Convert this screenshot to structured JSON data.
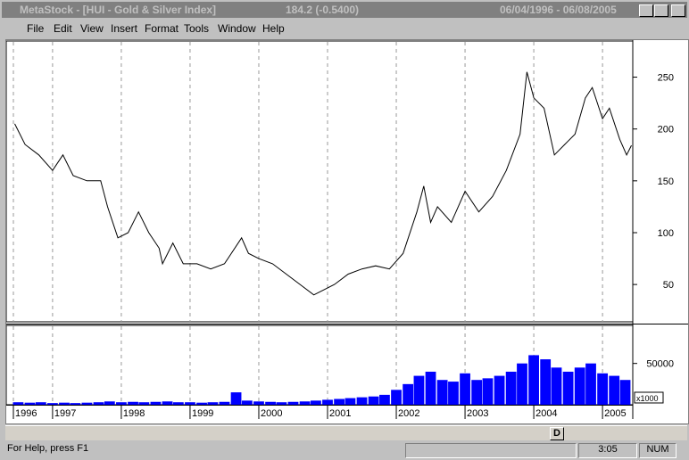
{
  "window": {
    "title": "MetaStock - [HUI - Gold & Silver Index]",
    "quote": "184.2 (-0.5400)",
    "range": "06/04/1996 - 06/08/2005"
  },
  "menu": [
    "File",
    "Edit",
    "View",
    "Insert",
    "Format",
    "Tools",
    "Window",
    "Help"
  ],
  "toolbar": {
    "button": "D"
  },
  "status": {
    "help": "For Help, press F1",
    "time": "3:05",
    "num": "NUM"
  },
  "chart_data": [
    {
      "type": "line",
      "color": "#000000",
      "x": [
        1996.45,
        1996.6,
        1996.8,
        1997.0,
        1997.15,
        1997.3,
        1997.5,
        1997.7,
        1997.8,
        1997.95,
        1998.1,
        1998.25,
        1998.4,
        1998.55,
        1998.6,
        1998.75,
        1998.9,
        1999.1,
        1999.3,
        1999.5,
        1999.75,
        1999.85,
        2000.0,
        2000.2,
        2000.4,
        2000.6,
        2000.8,
        2000.95,
        2001.1,
        2001.3,
        2001.5,
        2001.7,
        2001.9,
        2002.1,
        2002.3,
        2002.4,
        2002.5,
        2002.6,
        2002.8,
        2003.0,
        2003.2,
        2003.4,
        2003.6,
        2003.8,
        2003.9,
        2004.0,
        2004.15,
        2004.3,
        2004.45,
        2004.6,
        2004.75,
        2004.85,
        2005.0,
        2005.1,
        2005.25,
        2005.35,
        2005.42
      ],
      "values": [
        205,
        185,
        175,
        160,
        175,
        155,
        150,
        150,
        125,
        95,
        100,
        120,
        100,
        85,
        70,
        90,
        70,
        70,
        65,
        70,
        95,
        80,
        75,
        70,
        60,
        50,
        40,
        45,
        50,
        60,
        65,
        68,
        65,
        80,
        120,
        145,
        110,
        125,
        110,
        140,
        120,
        135,
        160,
        195,
        255,
        230,
        220,
        175,
        185,
        195,
        230,
        240,
        210,
        220,
        190,
        175,
        184.2
      ],
      "xlim": [
        1996.43,
        2005.44
      ],
      "ylim": [
        14,
        284
      ],
      "xticks": [
        {
          "value": 1996.43,
          "label": "1996"
        },
        1997,
        1998,
        1999,
        2000,
        2001,
        2002,
        2003,
        2004,
        2005
      ],
      "yticks": [
        50,
        100,
        150,
        200,
        250
      ],
      "grid": true
    },
    {
      "type": "bar",
      "color": "#0000ff",
      "axis_note": "x1000",
      "x": [
        1996.5,
        1996.67,
        1996.83,
        1997.0,
        1997.17,
        1997.33,
        1997.5,
        1997.67,
        1997.83,
        1998.0,
        1998.17,
        1998.33,
        1998.5,
        1998.67,
        1998.83,
        1999.0,
        1999.17,
        1999.33,
        1999.5,
        1999.67,
        1999.83,
        2000.0,
        2000.17,
        2000.33,
        2000.5,
        2000.67,
        2000.83,
        2001.0,
        2001.17,
        2001.33,
        2001.5,
        2001.67,
        2001.83,
        2002.0,
        2002.17,
        2002.33,
        2002.5,
        2002.67,
        2002.83,
        2003.0,
        2003.17,
        2003.33,
        2003.5,
        2003.67,
        2003.83,
        2004.0,
        2004.17,
        2004.33,
        2004.5,
        2004.67,
        2004.83,
        2005.0,
        2005.17,
        2005.33
      ],
      "values": [
        3000,
        2500,
        3000,
        2000,
        2500,
        2000,
        2500,
        3000,
        4000,
        3000,
        3500,
        3000,
        3500,
        4000,
        3000,
        3000,
        2500,
        3000,
        3500,
        15000,
        5000,
        4000,
        3500,
        3000,
        3500,
        4000,
        5000,
        6000,
        7000,
        8000,
        9000,
        10000,
        12000,
        18000,
        25000,
        35000,
        40000,
        30000,
        28000,
        38000,
        30000,
        32000,
        35000,
        40000,
        50000,
        60000,
        55000,
        45000,
        40000,
        45000,
        50000,
        38000,
        35000,
        30000
      ],
      "xlim": [
        1996.43,
        2005.44
      ],
      "ylim": [
        0,
        95000
      ],
      "yticks": [
        50000
      ]
    }
  ]
}
